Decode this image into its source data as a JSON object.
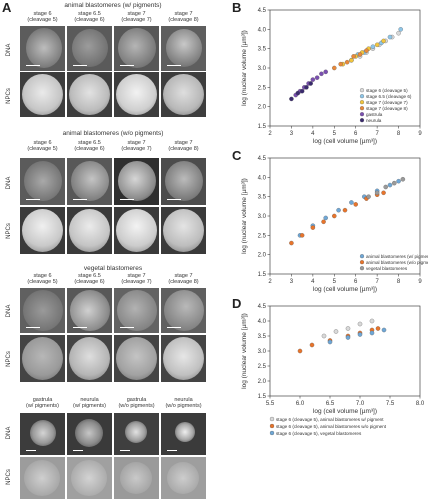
{
  "panel_letters": {
    "a": "A",
    "b": "B",
    "c": "C",
    "d": "D"
  },
  "left": {
    "sections": [
      {
        "title": "animal blastomeres (w/ pigments)",
        "stages": [
          {
            "line1": "stage 6",
            "line2": "(cleavage 5)"
          },
          {
            "line1": "stage 6.5",
            "line2": "(cleavage 6)"
          },
          {
            "line1": "stage 7",
            "line2": "(cleavage 7)"
          },
          {
            "line1": "stage 7",
            "line2": "(cleavage 8)"
          }
        ],
        "rows": [
          "DNA",
          "NPCs"
        ]
      },
      {
        "title": "animal blastomeres (w/o pigments)",
        "stages": [
          {
            "line1": "stage 6",
            "line2": "(cleavage 5)"
          },
          {
            "line1": "stage 6.5",
            "line2": "(cleavage 6)"
          },
          {
            "line1": "stage 7",
            "line2": "(cleavage 7)"
          },
          {
            "line1": "stage 7",
            "line2": "(cleavage 8)"
          }
        ],
        "rows": [
          "DNA",
          "NPCs"
        ]
      },
      {
        "title": "vegetal blastomeres",
        "stages": [
          {
            "line1": "stage 6",
            "line2": "(cleavage 5)"
          },
          {
            "line1": "stage 6.5",
            "line2": "(cleavage 6)"
          },
          {
            "line1": "stage 7",
            "line2": "(cleavage 7)"
          },
          {
            "line1": "stage 7",
            "line2": "(cleavage 8)"
          }
        ],
        "rows": [
          "DNA",
          "NPCs"
        ]
      }
    ],
    "bottom": {
      "stages": [
        {
          "line1": "gastrula",
          "line2": "(w/ pigments)"
        },
        {
          "line1": "neurula",
          "line2": "(w/ pigments)"
        },
        {
          "line1": "gastrula",
          "line2": "(w/o pigments)"
        },
        {
          "line1": "neurula",
          "line2": "(w/o pigments)"
        }
      ],
      "rows": [
        "DNA",
        "NPCs"
      ]
    }
  },
  "chart_data": [
    {
      "type": "scatter",
      "xlabel": "log (cell volume [µm³])",
      "ylabel": "log (nuclear volume [µm³])",
      "xlim": [
        2,
        9
      ],
      "ylim": [
        1.5,
        4.5
      ],
      "xticks": [
        "2",
        "3",
        "4",
        "5",
        "6",
        "7",
        "8",
        "9"
      ],
      "yticks": [
        "1.5",
        "2.0",
        "2.5",
        "3.0",
        "3.5",
        "4.0",
        "4.5"
      ],
      "legend_placement": "lower-right",
      "series": [
        {
          "name": "stage 6 (cleavage 5)",
          "color": "#d9d9d9",
          "x": [
            6.2,
            6.5,
            6.8,
            7.1,
            7.4,
            7.7,
            8.0
          ],
          "y": [
            3.3,
            3.4,
            3.5,
            3.6,
            3.7,
            3.8,
            3.9
          ]
        },
        {
          "name": "stage 6.5 (cleavage 6)",
          "color": "#8ec6e8",
          "x": [
            5.8,
            6.1,
            6.4,
            6.8,
            7.2,
            7.6,
            8.1
          ],
          "y": [
            3.2,
            3.35,
            3.4,
            3.55,
            3.65,
            3.8,
            4.0
          ]
        },
        {
          "name": "stage 7 (cleavage 7)",
          "color": "#f2c53d",
          "x": [
            5.4,
            5.8,
            6.0,
            6.3,
            6.6,
            7.0,
            7.3
          ],
          "y": [
            3.1,
            3.2,
            3.3,
            3.4,
            3.5,
            3.6,
            3.7
          ]
        },
        {
          "name": "stage 7 (cleavage 8)",
          "color": "#e8893a",
          "x": [
            5.0,
            5.3,
            5.6,
            5.9,
            6.2,
            6.5
          ],
          "y": [
            3.0,
            3.1,
            3.15,
            3.3,
            3.35,
            3.45
          ]
        },
        {
          "name": "gastrula",
          "color": "#7a4fb0",
          "x": [
            3.2,
            3.4,
            3.6,
            3.8,
            4.0,
            4.2,
            4.4,
            4.6
          ],
          "y": [
            2.3,
            2.4,
            2.5,
            2.6,
            2.7,
            2.75,
            2.85,
            2.9
          ]
        },
        {
          "name": "neurula",
          "color": "#3a2a6e",
          "x": [
            3.0,
            3.3,
            3.5,
            3.7,
            3.9
          ],
          "y": [
            2.2,
            2.35,
            2.4,
            2.5,
            2.6
          ]
        }
      ]
    },
    {
      "type": "scatter",
      "xlabel": "log (cell volume [µm³])",
      "ylabel": "log (nuclear volume [µm³])",
      "xlim": [
        2,
        9
      ],
      "ylim": [
        1.5,
        4.5
      ],
      "xticks": [
        "2",
        "3",
        "4",
        "5",
        "6",
        "7",
        "8",
        "9"
      ],
      "yticks": [
        "1.5",
        "2.0",
        "2.5",
        "3.0",
        "3.5",
        "4.0",
        "4.5"
      ],
      "legend_placement": "lower-right",
      "series": [
        {
          "name": "animal blastomeres (w/ pigments)",
          "color": "#6fa7d6",
          "x": [
            3.4,
            4.0,
            4.6,
            5.2,
            5.8,
            6.4,
            7.0,
            7.6,
            8.0
          ],
          "y": [
            2.5,
            2.75,
            2.95,
            3.15,
            3.35,
            3.5,
            3.65,
            3.8,
            3.9
          ]
        },
        {
          "name": "animal blastomeres (w/o pigments)",
          "color": "#e8742b",
          "x": [
            3.0,
            3.5,
            4.0,
            4.5,
            5.0,
            5.5,
            6.0,
            6.5,
            7.0,
            7.3
          ],
          "y": [
            2.3,
            2.5,
            2.7,
            2.85,
            3.0,
            3.15,
            3.3,
            3.45,
            3.55,
            3.6
          ]
        },
        {
          "name": "vegetal blastomeres",
          "color": "#9a9a9a",
          "x": [
            6.6,
            7.0,
            7.4,
            7.8,
            8.2
          ],
          "y": [
            3.5,
            3.6,
            3.75,
            3.85,
            3.95
          ]
        }
      ]
    },
    {
      "type": "scatter",
      "xlabel": "log (cell volume [µm³])",
      "ylabel": "log (nuclear volume [µm³])",
      "xlim": [
        5.5,
        8.0
      ],
      "ylim": [
        1.5,
        4.5
      ],
      "xticks": [
        "5.5",
        "6.0",
        "6.5",
        "7.0",
        "7.5",
        "8.0"
      ],
      "yticks": [
        "1.5",
        "2.0",
        "2.5",
        "3.0",
        "3.5",
        "4.0",
        "4.5"
      ],
      "legend_placement": "bottom",
      "series": [
        {
          "name": "stage 6 (cleavage 5), animal blastomeres w/ pigment",
          "color": "#d9d9d9",
          "x": [
            6.4,
            6.6,
            6.8,
            7.0,
            7.2
          ],
          "y": [
            3.5,
            3.65,
            3.75,
            3.9,
            4.0
          ]
        },
        {
          "name": "stage 6 (cleavage 5), animal blastomeres w/o pigment",
          "color": "#e8742b",
          "x": [
            6.0,
            6.2,
            6.5,
            6.8,
            7.0,
            7.2,
            7.3
          ],
          "y": [
            3.0,
            3.2,
            3.35,
            3.5,
            3.6,
            3.7,
            3.75
          ]
        },
        {
          "name": "stage 6 (cleavage 5), vegetal blastomeres",
          "color": "#6fa7d6",
          "x": [
            6.5,
            6.8,
            7.0,
            7.2,
            7.4
          ],
          "y": [
            3.3,
            3.45,
            3.55,
            3.6,
            3.7
          ]
        }
      ]
    }
  ]
}
